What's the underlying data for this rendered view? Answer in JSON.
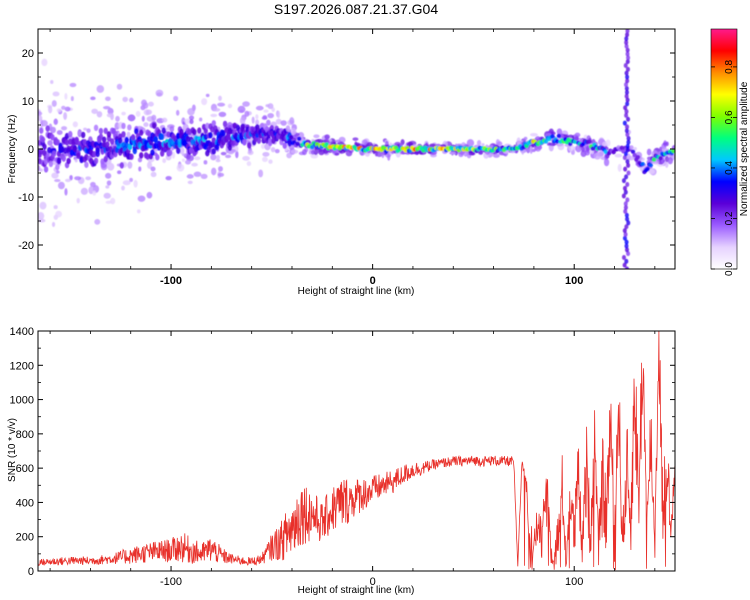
{
  "title": "S197.2026.087.21.37.G04",
  "chart_data": [
    {
      "type": "heatmap",
      "title": "S197.2026.087.21.37.G04",
      "xlabel": "Height of straight line (km)",
      "ylabel": "Frequency (Hz)",
      "xlim": [
        -166,
        150
      ],
      "ylim": [
        -25,
        25
      ],
      "xticks": [
        -100,
        0,
        100
      ],
      "yticks": [
        -20,
        -10,
        0,
        10,
        20
      ],
      "colorbar": {
        "label": "Normalized spectral amplitude",
        "range": [
          0,
          0.95
        ],
        "ticks": [
          0.0,
          0.2,
          0.4,
          0.6,
          0.8
        ],
        "colors": [
          "#ffffff",
          "#e6d2ff",
          "#9b5cff",
          "#5a00d8",
          "#0000ff",
          "#00c8ff",
          "#00ff7f",
          "#7fff00",
          "#ffff00",
          "#ff8c00",
          "#ff0000",
          "#ff1a8c"
        ]
      },
      "band": {
        "x": [
          -166,
          -140,
          -120,
          -100,
          -80,
          -60,
          -45,
          -35,
          -20,
          0,
          20,
          40,
          60,
          70,
          80,
          90,
          100,
          110,
          118,
          122,
          128,
          135,
          140,
          145,
          150
        ],
        "center_hz": [
          0,
          0,
          1,
          1.5,
          2,
          3,
          3,
          1,
          0.5,
          0,
          0,
          0,
          0,
          0,
          1.5,
          2,
          1.5,
          0.5,
          -1,
          0,
          0,
          -4,
          -2,
          -1,
          -0.5
        ],
        "amplitude": [
          0.3,
          0.4,
          0.45,
          0.45,
          0.45,
          0.4,
          0.35,
          0.6,
          0.9,
          0.85,
          0.9,
          0.8,
          0.7,
          0.65,
          0.8,
          0.75,
          0.6,
          0.6,
          0.4,
          0.3,
          0.3,
          0.5,
          0.55,
          0.6,
          0.6
        ],
        "spread_hz": [
          12,
          10,
          8,
          7,
          6,
          5,
          4,
          1.5,
          1,
          1,
          1,
          1,
          1,
          1,
          1.5,
          1.5,
          1.5,
          1.5,
          2,
          2,
          2,
          2,
          2,
          2,
          2
        ]
      }
    },
    {
      "type": "line",
      "xlabel": "Height of straight line (km)",
      "ylabel": "SNR (10 * v/v)",
      "xlim": [
        -166,
        150
      ],
      "ylim": [
        0,
        1400
      ],
      "xticks": [
        -100,
        0,
        100
      ],
      "yticks": [
        0,
        200,
        400,
        600,
        800,
        1000,
        1200,
        1400
      ],
      "color": "#e8302a",
      "series": [
        {
          "name": "SNR",
          "x": [
            -166,
            -150,
            -140,
            -130,
            -120,
            -110,
            -100,
            -95,
            -90,
            -85,
            -80,
            -75,
            -70,
            -65,
            -60,
            -55,
            -50,
            -45,
            -40,
            -35,
            -30,
            -25,
            -20,
            -15,
            -10,
            -5,
            0,
            5,
            10,
            15,
            20,
            25,
            30,
            35,
            40,
            45,
            50,
            55,
            60,
            65,
            70,
            72,
            74,
            76,
            78,
            80,
            82,
            84,
            86,
            88,
            90,
            92,
            94,
            96,
            98,
            100,
            102,
            104,
            106,
            108,
            110,
            112,
            114,
            116,
            118,
            120,
            122,
            124,
            126,
            128,
            130,
            132,
            134,
            136,
            138,
            140,
            142,
            144,
            146,
            148,
            150
          ],
          "values": [
            50,
            60,
            60,
            70,
            90,
            110,
            120,
            140,
            120,
            100,
            130,
            90,
            70,
            60,
            55,
            70,
            140,
            180,
            250,
            350,
            330,
            280,
            360,
            400,
            420,
            450,
            470,
            500,
            520,
            560,
            590,
            600,
            620,
            630,
            640,
            640,
            645,
            640,
            645,
            640,
            640,
            20,
            630,
            580,
            200,
            120,
            300,
            150,
            480,
            200,
            80,
            200,
            500,
            60,
            450,
            200,
            550,
            100,
            600,
            200,
            800,
            120,
            500,
            300,
            900,
            200,
            1000,
            150,
            600,
            300,
            1050,
            400,
            1300,
            200,
            800,
            150,
            1400,
            300,
            700,
            150,
            680
          ],
          "noise_amp": [
            20,
            25,
            25,
            30,
            50,
            60,
            70,
            90,
            80,
            60,
            80,
            50,
            30,
            25,
            25,
            30,
            80,
            120,
            180,
            200,
            150,
            120,
            140,
            160,
            120,
            100,
            90,
            70,
            70,
            60,
            50,
            40,
            30,
            30,
            30,
            30,
            30,
            30,
            30,
            30,
            30,
            10,
            40,
            80,
            150,
            80,
            150,
            100,
            200,
            150,
            80,
            150,
            200,
            50,
            200,
            150,
            250,
            80,
            300,
            150,
            300,
            100,
            300,
            200,
            300,
            150,
            350,
            120,
            300,
            250,
            350,
            300,
            350,
            150,
            300,
            100,
            300,
            200,
            250,
            100,
            120
          ]
        }
      ]
    }
  ]
}
